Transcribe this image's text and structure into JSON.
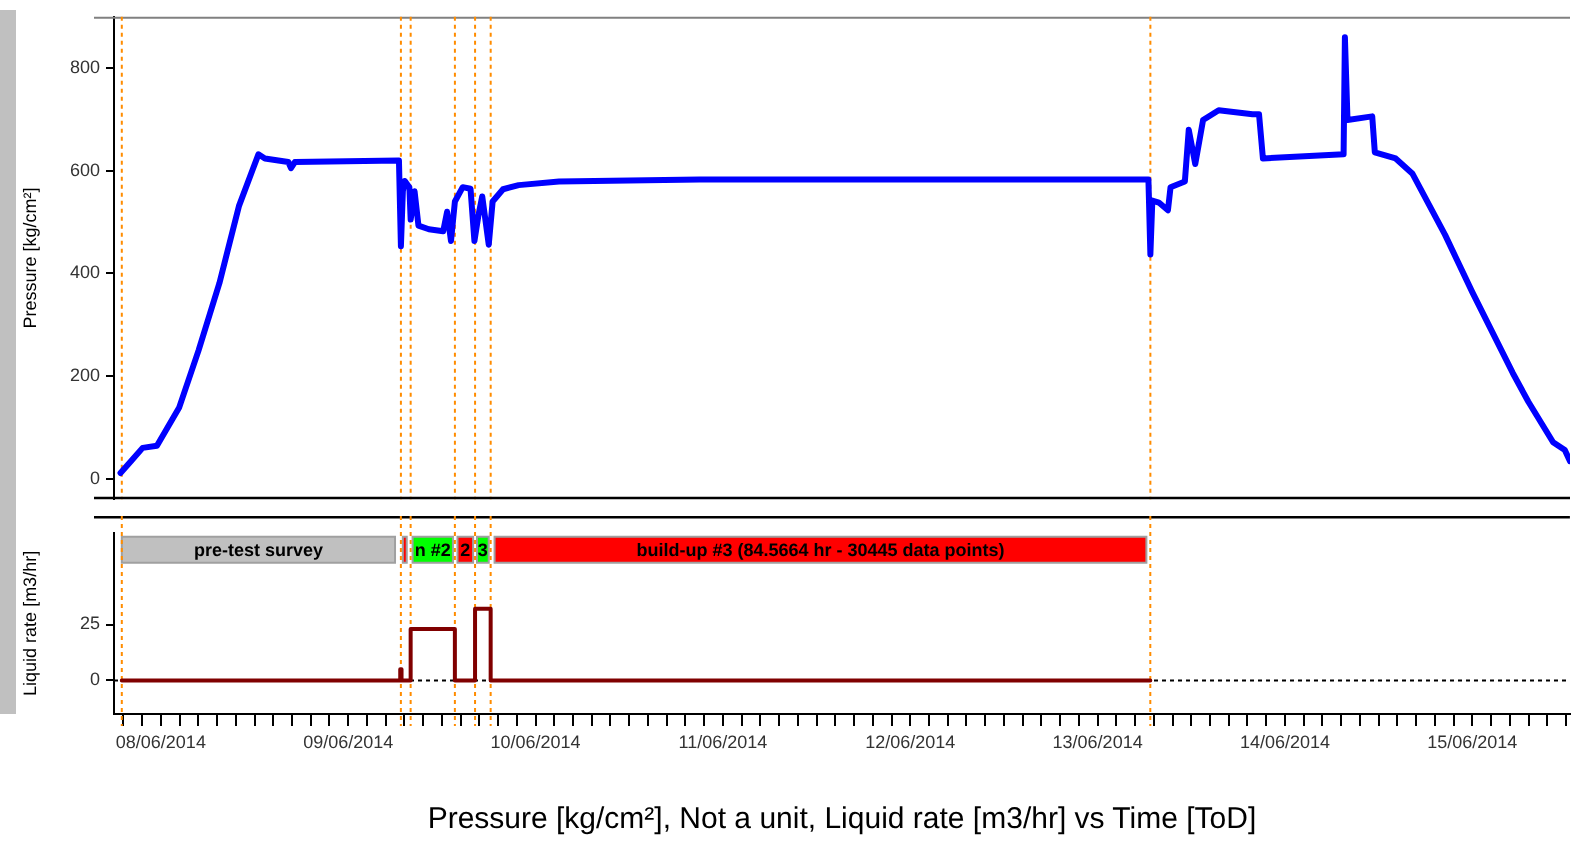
{
  "chart_data": [
    {
      "type": "line",
      "ylabel": "Pressure [kg/cm²]",
      "xlim": [
        "2014-06-07T18:00",
        "2014-06-15T12:30"
      ],
      "ylim": [
        -40,
        900
      ],
      "yticks": [
        0,
        200,
        400,
        600,
        800
      ],
      "tick_labels": "y",
      "marker": "none",
      "grid": false,
      "legend": false,
      "series": [
        {
          "color": "#0000ff",
          "x": [
            "2014-06-07T18:50",
            "2014-06-07T20:10",
            "2014-06-07T21:40",
            "2014-06-07T23:30",
            "2014-06-08T02:20",
            "2014-06-08T04:50",
            "2014-06-08T07:30",
            "2014-06-08T10:00",
            "2014-06-08T12:30",
            "2014-06-08T13:20",
            "2014-06-08T16:20",
            "2014-06-08T16:40",
            "2014-06-08T17:10",
            "2014-06-09T06:30",
            "2014-06-09T06:45",
            "2014-06-09T07:00",
            "2014-06-09T07:15",
            "2014-06-09T07:50",
            "2014-06-09T08:00",
            "2014-06-09T08:30",
            "2014-06-09T09:00",
            "2014-06-09T10:20",
            "2014-06-09T12:10",
            "2014-06-09T12:40",
            "2014-06-09T13:10",
            "2014-06-09T13:40",
            "2014-06-09T14:40",
            "2014-06-09T15:40",
            "2014-06-09T16:10",
            "2014-06-09T16:40",
            "2014-06-09T17:10",
            "2014-06-09T18:00",
            "2014-06-09T18:30",
            "2014-06-09T19:50",
            "2014-06-09T21:50",
            "2014-06-10T03:00",
            "2014-06-10T21:00",
            "2014-06-13T06:30",
            "2014-06-13T06:45",
            "2014-06-13T07:00",
            "2014-06-13T07:50",
            "2014-06-13T09:00",
            "2014-06-13T09:20",
            "2014-06-13T11:10",
            "2014-06-13T11:40",
            "2014-06-13T12:30",
            "2014-06-13T13:30",
            "2014-06-13T15:30",
            "2014-06-13T19:50",
            "2014-06-13T20:40",
            "2014-06-13T21:10",
            "2014-06-14T07:30",
            "2014-06-14T07:40",
            "2014-06-14T08:00",
            "2014-06-14T11:10",
            "2014-06-14T11:30",
            "2014-06-14T14:10",
            "2014-06-14T16:20",
            "2014-06-14T20:30",
            "2014-06-15T00:00",
            "2014-06-15T05:10",
            "2014-06-15T07:10",
            "2014-06-15T10:20",
            "2014-06-15T11:50",
            "2014-06-15T12:30"
          ],
          "values": [
            11,
            34,
            60,
            64,
            138,
            250,
            381,
            531,
            632,
            624,
            617,
            605,
            617,
            620,
            453,
            560,
            580,
            568,
            505,
            560,
            493,
            486,
            482,
            520,
            463,
            540,
            568,
            565,
            463,
            512,
            550,
            456,
            540,
            564,
            572,
            579,
            583,
            583,
            437,
            542,
            538,
            523,
            568,
            579,
            680,
            613,
            699,
            718,
            710,
            710,
            624,
            632,
            860,
            699,
            706,
            636,
            624,
            594,
            475,
            363,
            206,
            150,
            71,
            56,
            34
          ]
        }
      ],
      "ref_lines": [
        {
          "axis": "x",
          "value": "2014-06-07T19:00",
          "color": "#ff8c00",
          "line_style": "dotted"
        },
        {
          "axis": "x",
          "value": "2014-06-09T06:45",
          "color": "#ff8c00",
          "line_style": "dotted"
        },
        {
          "axis": "x",
          "value": "2014-06-09T08:00",
          "color": "#ff8c00",
          "line_style": "dotted"
        },
        {
          "axis": "x",
          "value": "2014-06-09T13:40",
          "color": "#ff8c00",
          "line_style": "dotted"
        },
        {
          "axis": "x",
          "value": "2014-06-09T16:15",
          "color": "#ff8c00",
          "line_style": "dotted"
        },
        {
          "axis": "x",
          "value": "2014-06-09T18:15",
          "color": "#ff8c00",
          "line_style": "dotted"
        },
        {
          "axis": "x",
          "value": "2014-06-13T06:45",
          "color": "#ff8c00",
          "line_style": "dotted"
        }
      ]
    },
    {
      "type": "step",
      "ylabel": "Liquid rate [m3/hr]",
      "xlabel": "Pressure [kg/cm²], Not a unit, Liquid rate [m3/hr] vs Time [ToD]",
      "xlim": [
        "2014-06-07T18:00",
        "2014-06-15T12:30"
      ],
      "ylim": [
        -15,
        66
      ],
      "yticks": [
        0,
        25
      ],
      "marker": "none",
      "grid": false,
      "legend": false,
      "xticks": [
        {
          "value": "2014-06-07T19:12",
          "label": null
        },
        {
          "value": "2014-06-07T21:36",
          "label": null
        },
        {
          "value": "2014-06-08",
          "label": "08/06/2014"
        },
        {
          "value": "2014-06-08T02:24",
          "label": null
        },
        {
          "value": "2014-06-08T04:48",
          "label": null
        },
        {
          "value": "2014-06-08T07:12",
          "label": null
        },
        {
          "value": "2014-06-08T09:36",
          "label": null
        },
        {
          "value": "2014-06-08T12:00",
          "label": null
        },
        {
          "value": "2014-06-08T14:24",
          "label": null
        },
        {
          "value": "2014-06-08T16:48",
          "label": null
        },
        {
          "value": "2014-06-08T19:12",
          "label": null
        },
        {
          "value": "2014-06-08T21:36",
          "label": null
        },
        {
          "value": "2014-06-09",
          "label": "09/06/2014"
        },
        {
          "value": "2014-06-09T02:24",
          "label": null
        },
        {
          "value": "2014-06-09T04:48",
          "label": null
        },
        {
          "value": "2014-06-09T07:12",
          "label": null
        },
        {
          "value": "2014-06-09T09:36",
          "label": null
        },
        {
          "value": "2014-06-09T12:00",
          "label": null
        },
        {
          "value": "2014-06-09T14:24",
          "label": null
        },
        {
          "value": "2014-06-09T16:48",
          "label": null
        },
        {
          "value": "2014-06-09T19:12",
          "label": null
        },
        {
          "value": "2014-06-09T21:36",
          "label": null
        },
        {
          "value": "2014-06-10",
          "label": "10/06/2014"
        },
        {
          "value": "2014-06-10T02:24",
          "label": null
        },
        {
          "value": "2014-06-10T04:48",
          "label": null
        },
        {
          "value": "2014-06-10T07:12",
          "label": null
        },
        {
          "value": "2014-06-10T09:36",
          "label": null
        },
        {
          "value": "2014-06-10T12:00",
          "label": null
        },
        {
          "value": "2014-06-10T14:24",
          "label": null
        },
        {
          "value": "2014-06-10T16:48",
          "label": null
        },
        {
          "value": "2014-06-10T19:12",
          "label": null
        },
        {
          "value": "2014-06-10T21:36",
          "label": null
        },
        {
          "value": "2014-06-11",
          "label": "11/06/2014"
        },
        {
          "value": "2014-06-11T02:24",
          "label": null
        },
        {
          "value": "2014-06-11T04:48",
          "label": null
        },
        {
          "value": "2014-06-11T07:12",
          "label": null
        },
        {
          "value": "2014-06-11T09:36",
          "label": null
        },
        {
          "value": "2014-06-11T12:00",
          "label": null
        },
        {
          "value": "2014-06-11T14:24",
          "label": null
        },
        {
          "value": "2014-06-11T16:48",
          "label": null
        },
        {
          "value": "2014-06-11T19:12",
          "label": null
        },
        {
          "value": "2014-06-11T21:36",
          "label": null
        },
        {
          "value": "2014-06-12",
          "label": "12/06/2014"
        },
        {
          "value": "2014-06-12T02:24",
          "label": null
        },
        {
          "value": "2014-06-12T04:48",
          "label": null
        },
        {
          "value": "2014-06-12T07:12",
          "label": null
        },
        {
          "value": "2014-06-12T09:36",
          "label": null
        },
        {
          "value": "2014-06-12T12:00",
          "label": null
        },
        {
          "value": "2014-06-12T14:24",
          "label": null
        },
        {
          "value": "2014-06-12T16:48",
          "label": null
        },
        {
          "value": "2014-06-12T19:12",
          "label": null
        },
        {
          "value": "2014-06-12T21:36",
          "label": null
        },
        {
          "value": "2014-06-13",
          "label": "13/06/2014"
        },
        {
          "value": "2014-06-13T02:24",
          "label": null
        },
        {
          "value": "2014-06-13T04:48",
          "label": null
        },
        {
          "value": "2014-06-13T07:12",
          "label": null
        },
        {
          "value": "2014-06-13T09:36",
          "label": null
        },
        {
          "value": "2014-06-13T12:00",
          "label": null
        },
        {
          "value": "2014-06-13T14:24",
          "label": null
        },
        {
          "value": "2014-06-13T16:48",
          "label": null
        },
        {
          "value": "2014-06-13T19:12",
          "label": null
        },
        {
          "value": "2014-06-13T21:36",
          "label": null
        },
        {
          "value": "2014-06-14",
          "label": "14/06/2014"
        },
        {
          "value": "2014-06-14T02:24",
          "label": null
        },
        {
          "value": "2014-06-14T04:48",
          "label": null
        },
        {
          "value": "2014-06-14T07:12",
          "label": null
        },
        {
          "value": "2014-06-14T09:36",
          "label": null
        },
        {
          "value": "2014-06-14T12:00",
          "label": null
        },
        {
          "value": "2014-06-14T14:24",
          "label": null
        },
        {
          "value": "2014-06-14T16:48",
          "label": null
        },
        {
          "value": "2014-06-14T19:12",
          "label": null
        },
        {
          "value": "2014-06-14T21:36",
          "label": null
        },
        {
          "value": "2014-06-15",
          "label": "15/06/2014"
        },
        {
          "value": "2014-06-15T02:24",
          "label": null
        },
        {
          "value": "2014-06-15T04:48",
          "label": null
        },
        {
          "value": "2014-06-15T07:12",
          "label": null
        },
        {
          "value": "2014-06-15T09:36",
          "label": null
        },
        {
          "value": "2014-06-15T12:00",
          "label": null
        }
      ],
      "series": [
        {
          "color": "#800000",
          "x": [
            "2014-06-07T19:00",
            "2014-06-09T06:40",
            "2014-06-09T06:50",
            "2014-06-09T08:00",
            "2014-06-09T13:40",
            "2014-06-09T16:15",
            "2014-06-09T18:15",
            "2014-06-13T06:45"
          ],
          "values": [
            0,
            5,
            0,
            23,
            0,
            32,
            0,
            0
          ]
        }
      ],
      "bands": [
        {
          "axis": "x",
          "from": "2014-06-07T19:00",
          "to": "2014-06-09T06:00",
          "label": "pre-test survey",
          "color": "#c0c0c0"
        },
        {
          "axis": "x",
          "from": "2014-06-09T07:00",
          "to": "2014-06-09T07:30",
          "color": "#ff0000"
        },
        {
          "axis": "x",
          "from": "2014-06-09T08:15",
          "to": "2014-06-09T13:25",
          "label": "n #2",
          "color": "#00ff00"
        },
        {
          "axis": "x",
          "from": "2014-06-09T14:00",
          "to": "2014-06-09T16:00",
          "label": "2",
          "color": "#ff0000"
        },
        {
          "axis": "x",
          "from": "2014-06-09T16:30",
          "to": "2014-06-09T18:00",
          "label": "3",
          "color": "#00ff00"
        },
        {
          "axis": "x",
          "from": "2014-06-09T18:45",
          "to": "2014-06-13T06:15",
          "label": "build-up #3 (84.5664 hr - 30445 data points)",
          "color": "#ff0000"
        }
      ],
      "ref_lines": [
        {
          "axis": "y",
          "value": 0,
          "color": "#000000",
          "line_style": "dotted"
        },
        {
          "axis": "x",
          "value": "2014-06-07T19:00",
          "color": "#ff8c00",
          "line_style": "dotted"
        },
        {
          "axis": "x",
          "value": "2014-06-09T06:45",
          "color": "#ff8c00",
          "line_style": "dotted"
        },
        {
          "axis": "x",
          "value": "2014-06-09T08:00",
          "color": "#ff8c00",
          "line_style": "dotted"
        },
        {
          "axis": "x",
          "value": "2014-06-09T13:40",
          "color": "#ff8c00",
          "line_style": "dotted"
        },
        {
          "axis": "x",
          "value": "2014-06-09T16:15",
          "color": "#ff8c00",
          "line_style": "dotted"
        },
        {
          "axis": "x",
          "value": "2014-06-09T18:15",
          "color": "#ff8c00",
          "line_style": "dotted"
        },
        {
          "axis": "x",
          "value": "2014-06-13T06:45",
          "color": "#ff8c00",
          "line_style": "dotted"
        }
      ]
    }
  ]
}
